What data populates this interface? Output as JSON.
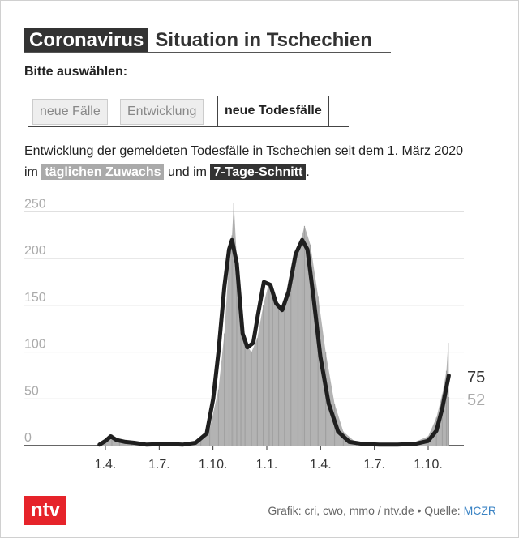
{
  "header": {
    "tag": "Coronavirus",
    "title": "Situation in Tschechien"
  },
  "prompt": "Bitte auswählen:",
  "tabs": [
    {
      "label": "neue Fälle",
      "active": false
    },
    {
      "label": "Entwicklung",
      "active": false
    },
    {
      "label": "neue Todesfälle",
      "active": true
    }
  ],
  "description": {
    "line1": "Entwicklung der gemeldeten Todesfälle in Tschechien seit dem 1. März 2020",
    "pre": "im",
    "chip_daily": "täglichen Zuwachs",
    "mid": "und im",
    "chip_avg": "7-Tage-Schnitt",
    "post": "."
  },
  "colors": {
    "bars": "#b3b3b3",
    "line": "#1f1f1f",
    "grid": "#e0e0e0",
    "logo": "#e6232a",
    "link": "#3a83c4"
  },
  "chart_data": {
    "type": "bar",
    "ylim": [
      0,
      260
    ],
    "y_ticks": [
      0,
      50,
      100,
      150,
      200,
      250
    ],
    "x_tick_labels": [
      "1.4.",
      "1.7.",
      "1.10.",
      "1.1.",
      "1.4.",
      "1.7.",
      "1.10."
    ],
    "series": [
      {
        "type": "bar",
        "points": [
          [
            "2020-03-22",
            1
          ],
          [
            "2020-04-01",
            6
          ],
          [
            "2020-04-12",
            12
          ],
          [
            "2020-04-25",
            5
          ],
          [
            "2020-05-15",
            2
          ],
          [
            "2020-06-15",
            1
          ],
          [
            "2020-07-15",
            1
          ],
          [
            "2020-08-15",
            2
          ],
          [
            "2020-09-10",
            6
          ],
          [
            "2020-09-25",
            18
          ],
          [
            "2020-10-10",
            60
          ],
          [
            "2020-10-20",
            120
          ],
          [
            "2020-10-28",
            200
          ],
          [
            "2020-11-02",
            225
          ],
          [
            "2020-11-05",
            260
          ],
          [
            "2020-11-10",
            200
          ],
          [
            "2020-11-17",
            140
          ],
          [
            "2020-11-24",
            110
          ],
          [
            "2020-12-05",
            100
          ],
          [
            "2020-12-15",
            115
          ],
          [
            "2020-12-25",
            150
          ],
          [
            "2021-01-04",
            175
          ],
          [
            "2021-01-10",
            170
          ],
          [
            "2021-01-20",
            145
          ],
          [
            "2021-01-30",
            150
          ],
          [
            "2021-02-10",
            175
          ],
          [
            "2021-02-22",
            210
          ],
          [
            "2021-03-01",
            225
          ],
          [
            "2021-03-05",
            235
          ],
          [
            "2021-03-15",
            215
          ],
          [
            "2021-03-28",
            160
          ],
          [
            "2021-04-10",
            100
          ],
          [
            "2021-04-25",
            45
          ],
          [
            "2021-05-10",
            15
          ],
          [
            "2021-06-01",
            3
          ],
          [
            "2021-07-01",
            1
          ],
          [
            "2021-08-01",
            1
          ],
          [
            "2021-09-01",
            2
          ],
          [
            "2021-10-01",
            10
          ],
          [
            "2021-10-15",
            30
          ],
          [
            "2021-10-25",
            55
          ],
          [
            "2021-11-01",
            80
          ],
          [
            "2021-11-04",
            110
          ],
          [
            "2021-11-05",
            52
          ]
        ]
      },
      {
        "type": "line",
        "points": [
          [
            "2020-03-22",
            1
          ],
          [
            "2020-04-01",
            5
          ],
          [
            "2020-04-10",
            10
          ],
          [
            "2020-04-20",
            6
          ],
          [
            "2020-05-05",
            4
          ],
          [
            "2020-05-20",
            3
          ],
          [
            "2020-06-10",
            1
          ],
          [
            "2020-07-15",
            2
          ],
          [
            "2020-08-10",
            1
          ],
          [
            "2020-09-01",
            3
          ],
          [
            "2020-09-20",
            13
          ],
          [
            "2020-10-01",
            50
          ],
          [
            "2020-10-10",
            100
          ],
          [
            "2020-10-20",
            170
          ],
          [
            "2020-10-28",
            210
          ],
          [
            "2020-11-02",
            220
          ],
          [
            "2020-11-10",
            195
          ],
          [
            "2020-11-20",
            120
          ],
          [
            "2020-11-28",
            105
          ],
          [
            "2020-12-08",
            110
          ],
          [
            "2020-12-16",
            140
          ],
          [
            "2020-12-26",
            175
          ],
          [
            "2021-01-06",
            172
          ],
          [
            "2021-01-16",
            152
          ],
          [
            "2021-01-26",
            145
          ],
          [
            "2021-02-06",
            165
          ],
          [
            "2021-02-18",
            205
          ],
          [
            "2021-03-01",
            220
          ],
          [
            "2021-03-10",
            210
          ],
          [
            "2021-03-20",
            160
          ],
          [
            "2021-04-01",
            95
          ],
          [
            "2021-04-15",
            45
          ],
          [
            "2021-05-01",
            15
          ],
          [
            "2021-05-20",
            4
          ],
          [
            "2021-06-10",
            2
          ],
          [
            "2021-07-10",
            1
          ],
          [
            "2021-08-10",
            1
          ],
          [
            "2021-09-10",
            2
          ],
          [
            "2021-10-01",
            5
          ],
          [
            "2021-10-15",
            16
          ],
          [
            "2021-10-25",
            40
          ],
          [
            "2021-11-05",
            75
          ]
        ]
      }
    ],
    "end_labels": {
      "line_value": "75",
      "bar_value": "52"
    }
  },
  "footer": {
    "logo": "ntv",
    "source_prefix": "Grafik: cri, cwo, mmo / ntv.de • Quelle: ",
    "source_link": "MCZR"
  }
}
